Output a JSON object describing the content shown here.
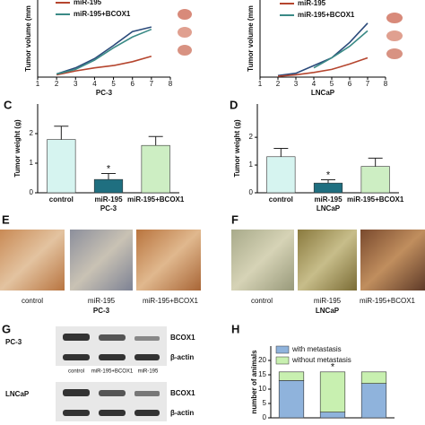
{
  "chart_data": [
    {
      "type": "line",
      "xlabel": "PC-3",
      "ylabel": "Tumor volume (mm",
      "xlim": [
        1,
        8
      ],
      "xticks": [
        1,
        2,
        3,
        4,
        5,
        6,
        7,
        8
      ],
      "ylim": [
        0,
        100
      ],
      "x": [
        2,
        3,
        4,
        5,
        6,
        7
      ],
      "series": [
        {
          "name": null,
          "color": "#2b4a7a",
          "values": [
            4,
            12,
            24,
            41,
            59,
            65
          ]
        },
        {
          "name": "miR-195",
          "color": "#b5452e",
          "values": [
            3,
            8,
            12,
            15,
            20,
            27
          ]
        },
        {
          "name": "miR-195+BCOX1",
          "color": "#3a8a86",
          "values": [
            4,
            10,
            22,
            38,
            52,
            62
          ]
        }
      ]
    },
    {
      "type": "line",
      "xlabel": "LNCaP",
      "ylabel": "Tumor volume (mm",
      "xlim": [
        1,
        8
      ],
      "xticks": [
        1,
        2,
        3,
        4,
        5,
        6,
        7,
        8
      ],
      "ylim": [
        0,
        100
      ],
      "x": [
        2,
        3,
        4,
        5,
        6,
        7
      ],
      "series": [
        {
          "name": null,
          "color": "#2b4a7a",
          "values": [
            2,
            5,
            15,
            25,
            45,
            70
          ]
        },
        {
          "name": "miR-195",
          "color": "#b5452e",
          "values": [
            1,
            3,
            6,
            10,
            17,
            25
          ]
        },
        {
          "name": "miR-195+BCOX1",
          "color": "#3a8a86",
          "values": [
            null,
            null,
            12,
            25,
            40,
            60
          ]
        }
      ]
    },
    {
      "type": "bar",
      "letter": "C",
      "xlabel": "PC-3",
      "ylabel": "Tumor weight (g)",
      "ylim": [
        0,
        3
      ],
      "yticks": [
        0,
        1,
        2
      ],
      "categories": [
        "control",
        "miR-195",
        "miR-195+BCOX1"
      ],
      "values": [
        1.8,
        0.45,
        1.6
      ],
      "errors": [
        0.45,
        0.2,
        0.3
      ],
      "colors": [
        "#d6f4f0",
        "#1f6f80",
        "#cdeec3"
      ],
      "annotation": "*"
    },
    {
      "type": "bar",
      "letter": "D",
      "xlabel": "LNCaP",
      "ylabel": "Tumor weight (g)",
      "ylim": [
        0,
        3.2
      ],
      "yticks": [
        0,
        1,
        2
      ],
      "categories": [
        "control",
        "miR-195",
        "miR-195+BCOX1"
      ],
      "values": [
        1.3,
        0.35,
        0.95
      ],
      "errors": [
        0.3,
        0.12,
        0.3
      ],
      "colors": [
        "#d6f4f0",
        "#1f6f80",
        "#cdeec3"
      ],
      "annotation": "*"
    },
    {
      "type": "stacked",
      "letter": "H",
      "ylabel": "number of animals",
      "ylim": [
        0,
        25
      ],
      "yticks": [
        0,
        5,
        10,
        15,
        20
      ],
      "categories": [
        null,
        null,
        null
      ],
      "series": [
        {
          "name": "with metastasis",
          "color": "#8fb3dc",
          "values": [
            13,
            2,
            12
          ]
        },
        {
          "name": "without metastasis",
          "color": "#c8f0b0",
          "values": [
            3,
            14,
            4
          ]
        }
      ],
      "annotation": "*"
    }
  ],
  "panel_e": {
    "letter": "E",
    "captions": [
      "control",
      "miR-195",
      "miR-195+BCOX1"
    ],
    "group": "PC-3"
  },
  "panel_f": {
    "letter": "F",
    "captions": [
      "control",
      "miR-195",
      "miR-195+BCOX1"
    ],
    "group": "LNCaP"
  },
  "panel_g": {
    "letter": "G",
    "top": {
      "cell": "PC-3",
      "bands": [
        "BCOX1",
        "β-actin"
      ]
    },
    "lanes": [
      "control",
      "miR-195+BCOX1",
      "miR-195"
    ],
    "bottom": {
      "cell": "LNCaP",
      "bands": [
        "BCOX1",
        "β-actin"
      ]
    }
  }
}
